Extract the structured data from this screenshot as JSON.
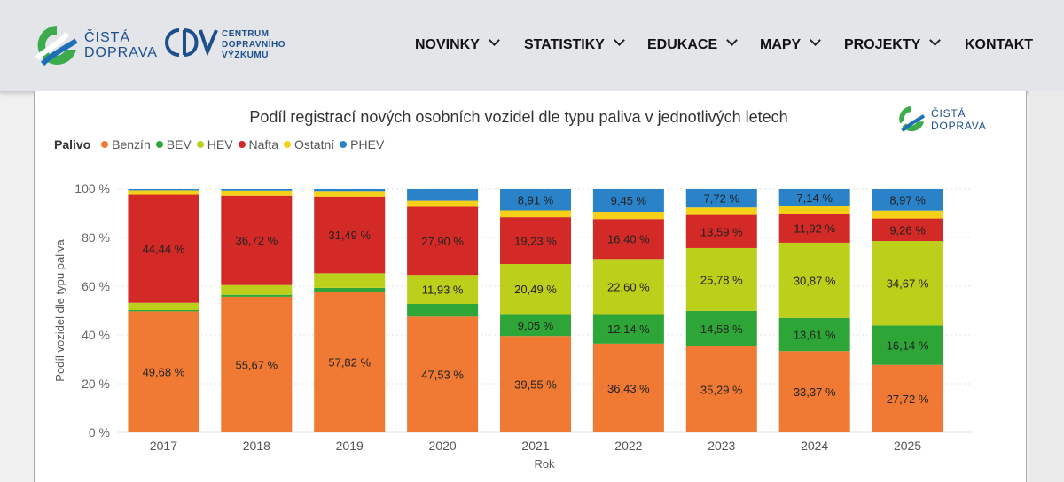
{
  "nav": {
    "brand": {
      "line1": "ČISTÁ",
      "line2": "DOPRAVA"
    },
    "partner": {
      "line1": "CENTRUM",
      "line2": "DOPRAVNÍHO",
      "line3": "VÝZKUMU"
    },
    "menu": [
      {
        "label": "NOVINKY",
        "dropdown": true
      },
      {
        "label": "STATISTIKY",
        "dropdown": true
      },
      {
        "label": "EDUKACE",
        "dropdown": true
      },
      {
        "label": "MAPY",
        "dropdown": true
      },
      {
        "label": "PROJEKTY",
        "dropdown": true
      },
      {
        "label": "KONTAKT",
        "dropdown": false
      }
    ]
  },
  "watermark": {
    "line1": "ČISTÁ",
    "line2": "DOPRAVA"
  },
  "colors": {
    "brand_green": "#3cab4b",
    "brand_blue": "#1d4f8c"
  },
  "chart_data": {
    "type": "bar",
    "stacked": true,
    "title": "Podíl registrací nových osobních vozidel dle typu paliva v jednotlivých letech",
    "legend_title": "Palivo",
    "legend_position": "top-left",
    "xlabel": "Rok",
    "ylabel": "Podíl vozidel dle typu paliva",
    "ylim": [
      0,
      100
    ],
    "y_ticks": [
      "0 %",
      "20 %",
      "40 %",
      "60 %",
      "80 %",
      "100 %"
    ],
    "grid": true,
    "categories": [
      "2017",
      "2018",
      "2019",
      "2020",
      "2021",
      "2022",
      "2023",
      "2024",
      "2025"
    ],
    "series": [
      {
        "name": "Benzín",
        "color": "#f07a33",
        "values": [
          49.68,
          55.67,
          57.82,
          47.53,
          39.55,
          36.43,
          35.29,
          33.37,
          27.72
        ],
        "labels": [
          "49,68 %",
          "55,67 %",
          "57,82 %",
          "47,53 %",
          "39,55 %",
          "36,43 %",
          "35,29 %",
          "33,37 %",
          "27,72 %"
        ]
      },
      {
        "name": "BEV",
        "color": "#2ea637",
        "values": [
          0.5,
          0.8,
          1.5,
          5.2,
          9.05,
          12.14,
          14.58,
          13.61,
          16.14
        ],
        "labels": [
          "",
          "",
          "",
          "",
          "9,05 %",
          "12,14 %",
          "14,58 %",
          "13,61 %",
          "16,14 %"
        ]
      },
      {
        "name": "HEV",
        "color": "#bccf1a",
        "values": [
          3.0,
          4.0,
          6.0,
          11.93,
          20.49,
          22.6,
          25.78,
          30.87,
          34.67
        ],
        "labels": [
          "",
          "",
          "",
          "11,93 %",
          "20,49 %",
          "22,60 %",
          "25,78 %",
          "30,87 %",
          "34,67 %"
        ]
      },
      {
        "name": "Nafta",
        "color": "#d42a27",
        "values": [
          44.44,
          36.72,
          31.49,
          27.9,
          19.23,
          16.4,
          13.59,
          11.92,
          9.26
        ],
        "labels": [
          "44,44 %",
          "36,72 %",
          "31,49 %",
          "27,90 %",
          "19,23 %",
          "16,40 %",
          "13,59 %",
          "11,92 %",
          "9,26 %"
        ]
      },
      {
        "name": "Ostatní",
        "color": "#f7d117",
        "values": [
          1.5,
          1.8,
          2.0,
          2.5,
          2.77,
          2.98,
          3.04,
          3.09,
          3.24
        ],
        "labels": [
          "",
          "",
          "",
          "",
          "",
          "",
          "",
          "",
          ""
        ]
      },
      {
        "name": "PHEV",
        "color": "#2a82c8",
        "values": [
          0.88,
          1.01,
          1.19,
          4.94,
          8.91,
          9.45,
          7.72,
          7.14,
          8.97
        ],
        "labels": [
          "",
          "",
          "",
          "",
          "8,91 %",
          "9,45 %",
          "7,72 %",
          "7,14 %",
          "8,97 %"
        ]
      }
    ]
  }
}
